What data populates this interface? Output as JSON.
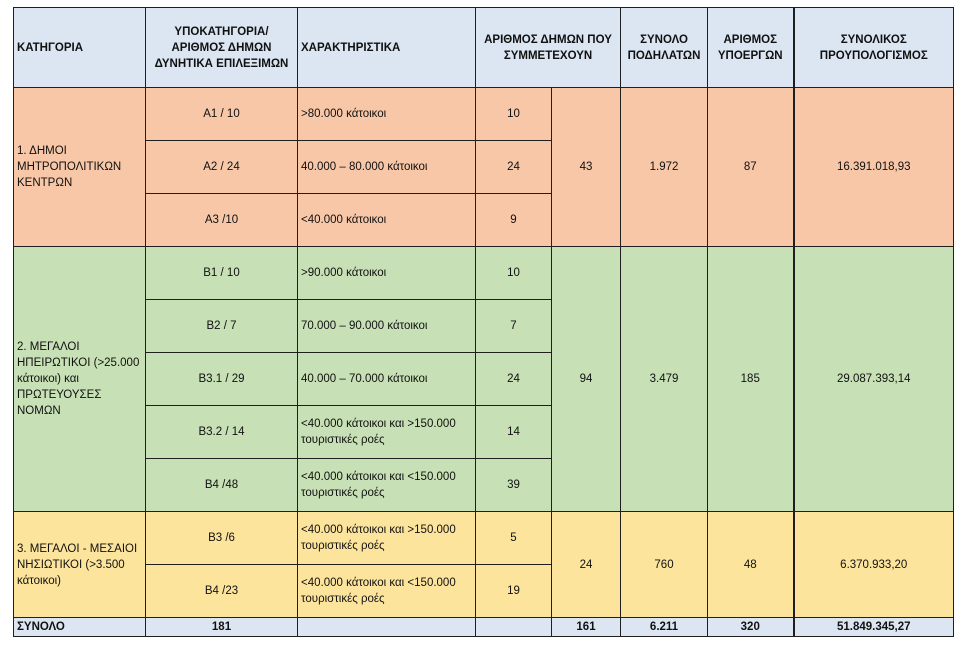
{
  "headers": {
    "category": "ΚΑΤΗΓΟΡΙΑ",
    "subcategory": "ΥΠΟΚΑΤΗΓΟΡΙΑ/ ΑΡΙΘΜΟΣ ΔΗΜΩΝ ΔΥΝΗΤΙΚΑ ΕΠΙΛΕΞΙΜΩΝ",
    "characteristics": "ΧΑΡΑΚΤΗΡΙΣΤΙΚΑ",
    "participating": "ΑΡΙΘΜΟΣ ΔΗΜΩΝ ΠΟΥ ΣΥΜΜΕΤΕΧΟΥΝ",
    "bikes": "ΣΥΝΟΛΟ ΠΟΔΗΛΑΤΩΝ",
    "subprojects": "ΑΡΙΘΜΟΣ ΥΠΟΕΡΓΩΝ",
    "budget": "ΣΥΝΟΛΙΚΟΣ ΠΡΟΥΠΟΛΟΓΙΣΜΟΣ"
  },
  "groups": [
    {
      "category": "1. ΔΗΜΟΙ ΜΗΤΡΟΠΟΛΙΤΙΚΩΝ ΚΕΝΤΡΩΝ",
      "total_participating": "43",
      "bikes": "1.972",
      "subprojects": "87",
      "budget": "16.391.018,93",
      "rows": [
        {
          "sub": "Α1 / 10",
          "char": ">80.000 κάτοικοι",
          "part": "10"
        },
        {
          "sub": "Α2 / 24",
          "char": "40.000 – 80.000 κάτοικοι",
          "part": "24"
        },
        {
          "sub": "Α3 /10",
          "char": "<40.000 κάτοικοι",
          "part": "9"
        }
      ]
    },
    {
      "category": "2. ΜΕΓΑΛΟΙ ΗΠΕΙΡΩΤΙΚΟΙ (>25.000 κάτοικοι) και ΠΡΩΤΕΥΟΥΣΕΣ ΝΟΜΩΝ",
      "total_participating": "94",
      "bikes": "3.479",
      "subprojects": "185",
      "budget": "29.087.393,14",
      "rows": [
        {
          "sub": "Β1 / 10",
          "char": ">90.000 κάτοικοι",
          "part": "10"
        },
        {
          "sub": "Β2 / 7",
          "char": "70.000 – 90.000 κάτοικοι",
          "part": "7"
        },
        {
          "sub": "Β3.1 / 29",
          "char": "40.000 – 70.000 κάτοικοι",
          "part": "24"
        },
        {
          "sub": "Β3.2 / 14",
          "char": "<40.000 κάτοικοι και >150.000 τουριστικές ροές",
          "part": "14"
        },
        {
          "sub": "Β4 /48",
          "char": "<40.000 κάτοικοι και <150.000 τουριστικές ροές",
          "part": "39"
        }
      ]
    },
    {
      "category": "3. ΜΕΓΑΛΟΙ - ΜΕΣΑΙΟΙ ΝΗΣΙΩΤΙΚΟΙ (>3.500 κάτοικοι)",
      "total_participating": "24",
      "bikes": "760",
      "subprojects": "48",
      "budget": "6.370.933,20",
      "rows": [
        {
          "sub": "Β3 /6",
          "char": "<40.000 κάτοικοι και >150.000 τουριστικές ροές",
          "part": "5"
        },
        {
          "sub": "Β4 /23",
          "char": "<40.000 κάτοικοι και <150.000 τουριστικές ροές",
          "part": "19"
        }
      ]
    }
  ],
  "totals": {
    "label": "ΣΥΝΟΛΟ",
    "sub": "181",
    "participating": "161",
    "bikes": "6.211",
    "subprojects": "320",
    "budget": "51.849.345,27"
  }
}
